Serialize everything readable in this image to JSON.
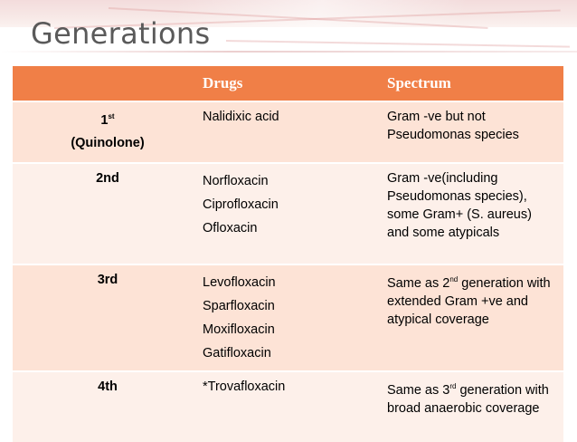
{
  "slide": {
    "title": "Generations"
  },
  "table": {
    "headers": {
      "generation": "",
      "drugs": "Drugs",
      "spectrum": "Spectrum"
    },
    "rows": [
      {
        "gen_main": "1",
        "gen_sup": "st",
        "gen_sub": "(Quinolone)",
        "drugs": [
          "Nalidixic acid"
        ],
        "spectrum": "Gram -ve but not Pseudomonas species"
      },
      {
        "gen_main": "2nd",
        "drugs": [
          "Norfloxacin",
          "Ciprofloxacin",
          "Ofloxacin"
        ],
        "spectrum": "Gram -ve(including Pseudomonas species), some Gram+ (S. aureus) and some atypicals"
      },
      {
        "gen_main": "3rd",
        "drugs": [
          "Levofloxacin",
          "Sparfloxacin",
          "Moxifloxacin",
          "Gatifloxacin"
        ],
        "spectrum_pre": "Same as 2",
        "spectrum_sup": "nd",
        "spectrum_post": " generation with extended Gram +ve and atypical coverage"
      },
      {
        "gen_main": "4th",
        "drugs": [
          "*Trovafloxacin"
        ],
        "spectrum_pre": "Same as 3",
        "spectrum_sup": "rd",
        "spectrum_post": " generation with broad anaerobic coverage"
      }
    ]
  },
  "colors": {
    "header_bg": "#f07f47",
    "row_odd": "#fde3d6",
    "row_even": "#fdf0ea"
  }
}
